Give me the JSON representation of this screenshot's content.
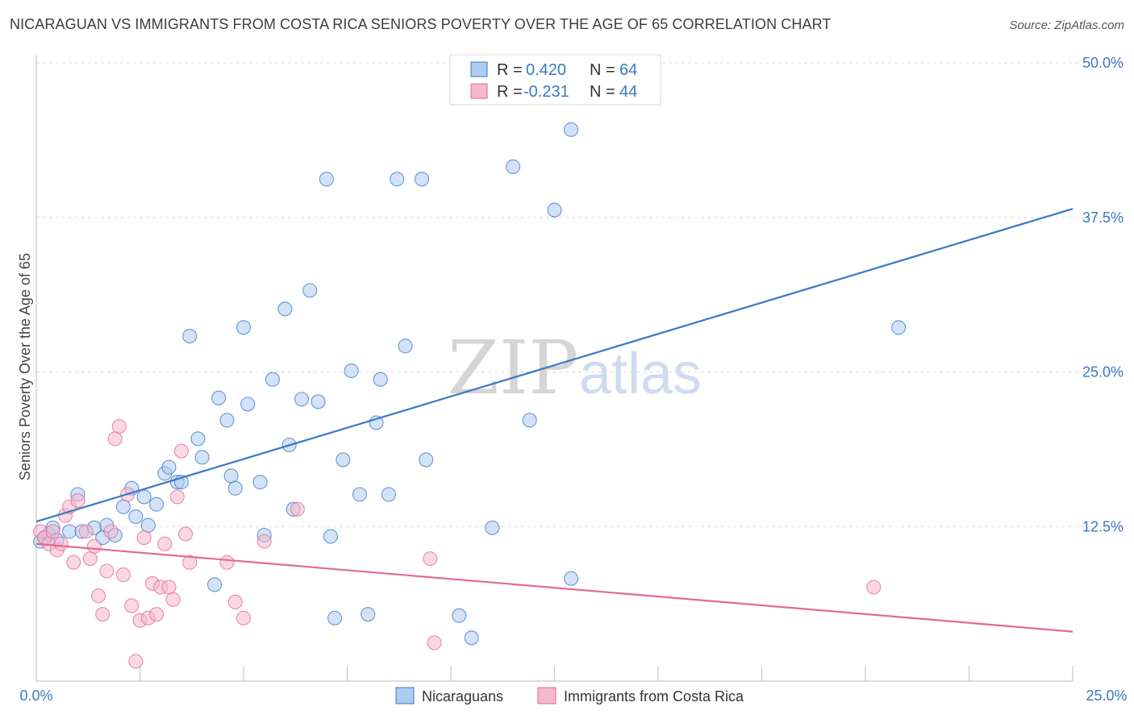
{
  "title": "NICARAGUAN VS IMMIGRANTS FROM COSTA RICA SENIORS POVERTY OVER THE AGE OF 65 CORRELATION CHART",
  "source": "Source: ZipAtlas.com",
  "watermark": {
    "zip": "ZIP",
    "atlas": "atlas"
  },
  "colors": {
    "blue": "#3a78c6",
    "blue_fill": "#aecbf0",
    "pink": "#e06a95",
    "pink_fill": "#f6b8cc",
    "tick_text": "#3a78c6",
    "grid": "#d9d9d9"
  },
  "legend": {
    "rows": [
      {
        "r_label": "R =",
        "r_value": "0.420",
        "n_label": "N =",
        "n_value": "64"
      },
      {
        "r_label": "R =",
        "r_value": "-0.231",
        "n_label": "N =",
        "n_value": "44"
      }
    ]
  },
  "bottom_legend": {
    "series1": "Nicaraguans",
    "series2": "Immigrants from Costa Rica"
  },
  "chart_data": {
    "type": "scatter",
    "ylabel": "Seniors Poverty Over the Age of 65",
    "xlim": [
      0,
      25
    ],
    "ylim": [
      0,
      50
    ],
    "x_tick_labels": [
      "0.0%",
      "25.0%"
    ],
    "y_ticks": [
      12.5,
      25.0,
      37.5,
      50.0
    ],
    "y_tick_labels": [
      "12.5%",
      "25.0%",
      "37.5%",
      "50.0%"
    ],
    "grid": "horizontal dashed",
    "series": [
      {
        "name": "Nicaraguans",
        "color": "#3a78c6",
        "trend": {
          "x": [
            0,
            25
          ],
          "y": [
            12.9,
            38.2
          ]
        },
        "points": [
          [
            0.1,
            11.3
          ],
          [
            0.2,
            11.6
          ],
          [
            0.3,
            11.9
          ],
          [
            0.4,
            12.4
          ],
          [
            0.5,
            11.4
          ],
          [
            0.8,
            12.1
          ],
          [
            1.0,
            15.1
          ],
          [
            1.1,
            12.1
          ],
          [
            1.4,
            12.4
          ],
          [
            1.6,
            11.6
          ],
          [
            1.7,
            12.6
          ],
          [
            1.9,
            11.8
          ],
          [
            2.1,
            14.1
          ],
          [
            2.3,
            15.6
          ],
          [
            2.4,
            13.3
          ],
          [
            2.6,
            14.9
          ],
          [
            2.7,
            12.6
          ],
          [
            2.9,
            14.3
          ],
          [
            3.1,
            16.8
          ],
          [
            3.2,
            17.3
          ],
          [
            3.4,
            16.1
          ],
          [
            3.5,
            16.1
          ],
          [
            3.7,
            27.9
          ],
          [
            3.9,
            19.6
          ],
          [
            4.0,
            18.1
          ],
          [
            4.3,
            7.8
          ],
          [
            4.4,
            22.9
          ],
          [
            4.6,
            21.1
          ],
          [
            4.7,
            16.6
          ],
          [
            4.8,
            15.6
          ],
          [
            5.0,
            28.6
          ],
          [
            5.1,
            22.4
          ],
          [
            5.4,
            16.1
          ],
          [
            5.5,
            11.8
          ],
          [
            5.7,
            24.4
          ],
          [
            6.0,
            30.1
          ],
          [
            6.1,
            19.1
          ],
          [
            6.2,
            13.9
          ],
          [
            6.4,
            22.8
          ],
          [
            6.6,
            31.6
          ],
          [
            6.8,
            22.6
          ],
          [
            7.0,
            40.6
          ],
          [
            7.1,
            11.7
          ],
          [
            7.2,
            5.1
          ],
          [
            7.4,
            17.9
          ],
          [
            7.6,
            25.1
          ],
          [
            7.8,
            15.1
          ],
          [
            8.0,
            5.4
          ],
          [
            8.2,
            20.9
          ],
          [
            8.3,
            24.4
          ],
          [
            8.5,
            15.1
          ],
          [
            8.7,
            40.6
          ],
          [
            8.9,
            27.1
          ],
          [
            9.3,
            40.6
          ],
          [
            9.4,
            17.9
          ],
          [
            10.2,
            5.3
          ],
          [
            10.5,
            3.5
          ],
          [
            11.0,
            12.4
          ],
          [
            11.5,
            41.6
          ],
          [
            11.9,
            21.1
          ],
          [
            12.5,
            38.1
          ],
          [
            12.9,
            44.6
          ],
          [
            12.9,
            8.3
          ],
          [
            20.8,
            28.6
          ]
        ]
      },
      {
        "name": "Immigrants from Costa Rica",
        "color": "#e06a95",
        "trend": {
          "x": [
            0,
            25
          ],
          "y": [
            11.1,
            4.0
          ]
        },
        "points": [
          [
            0.1,
            12.1
          ],
          [
            0.2,
            11.6
          ],
          [
            0.3,
            11.1
          ],
          [
            0.4,
            12.1
          ],
          [
            0.5,
            10.6
          ],
          [
            0.6,
            11.1
          ],
          [
            0.7,
            13.4
          ],
          [
            0.8,
            14.1
          ],
          [
            0.9,
            9.6
          ],
          [
            1.0,
            14.6
          ],
          [
            1.2,
            12.1
          ],
          [
            1.3,
            9.9
          ],
          [
            1.4,
            10.9
          ],
          [
            1.5,
            6.9
          ],
          [
            1.6,
            5.4
          ],
          [
            1.7,
            8.9
          ],
          [
            1.8,
            12.1
          ],
          [
            1.9,
            19.6
          ],
          [
            2.0,
            20.6
          ],
          [
            2.1,
            8.6
          ],
          [
            2.2,
            15.1
          ],
          [
            2.3,
            6.1
          ],
          [
            2.4,
            1.6
          ],
          [
            2.5,
            4.9
          ],
          [
            2.6,
            11.6
          ],
          [
            2.7,
            5.1
          ],
          [
            2.8,
            7.9
          ],
          [
            2.9,
            5.4
          ],
          [
            3.0,
            7.6
          ],
          [
            3.1,
            11.1
          ],
          [
            3.2,
            7.6
          ],
          [
            3.3,
            6.6
          ],
          [
            3.4,
            14.9
          ],
          [
            3.5,
            18.6
          ],
          [
            3.6,
            11.9
          ],
          [
            3.7,
            9.6
          ],
          [
            4.6,
            9.6
          ],
          [
            4.8,
            6.4
          ],
          [
            5.0,
            5.1
          ],
          [
            5.5,
            11.3
          ],
          [
            6.3,
            13.9
          ],
          [
            9.5,
            9.9
          ],
          [
            9.6,
            3.1
          ],
          [
            20.2,
            7.6
          ]
        ]
      }
    ]
  }
}
